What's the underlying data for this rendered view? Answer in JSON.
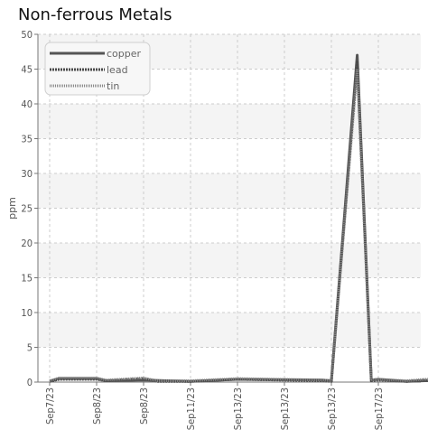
{
  "chart_data": {
    "type": "line",
    "title": "Non-ferrous Metals",
    "xlabel": "",
    "ylabel": "ppm",
    "ylim": [
      0,
      50
    ],
    "yticks": [
      0,
      5,
      10,
      15,
      20,
      25,
      30,
      35,
      40,
      45,
      50
    ],
    "categories": [
      "Sep7/23",
      "Sep8/23",
      "Sep8/23",
      "Sep11/23",
      "Sep13/23",
      "Sep13/23",
      "Sep13/23",
      "Sep17/23"
    ],
    "grid": true,
    "legend_position": "top-left",
    "series": [
      {
        "name": "copper",
        "color": "#555555",
        "style": "solid",
        "points": [
          [
            0,
            0.1
          ],
          [
            0.2,
            0.5
          ],
          [
            1.0,
            0.5
          ],
          [
            1.2,
            0.2
          ],
          [
            2.0,
            0.3
          ],
          [
            3.0,
            0.1
          ],
          [
            4.0,
            0.4
          ],
          [
            5.8,
            0.3
          ],
          [
            6.0,
            0.2
          ],
          [
            6.55,
            47.0
          ],
          [
            6.85,
            0.3
          ],
          [
            7.0,
            0.4
          ],
          [
            7.6,
            0.1
          ],
          [
            8.0,
            0.2
          ],
          [
            8.6,
            0.2
          ]
        ]
      },
      {
        "name": "lead",
        "color": "#4a4a4a",
        "style": "dense-dash",
        "points": [
          [
            0,
            0.1
          ],
          [
            0.2,
            0.4
          ],
          [
            1.0,
            0.4
          ],
          [
            1.2,
            0.2
          ],
          [
            2.0,
            0.5
          ],
          [
            2.3,
            0.1
          ],
          [
            3.0,
            0.1
          ],
          [
            4.0,
            0.4
          ],
          [
            5.8,
            0.2
          ],
          [
            6.0,
            0.1
          ],
          [
            6.55,
            46.0
          ],
          [
            6.85,
            0.2
          ],
          [
            7.0,
            0.3
          ],
          [
            7.6,
            0.1
          ],
          [
            8.0,
            0.3
          ],
          [
            8.6,
            0.3
          ]
        ]
      },
      {
        "name": "tin",
        "color": "#888888",
        "style": "dotted",
        "points": [
          [
            0,
            0.2
          ],
          [
            0.2,
            0.6
          ],
          [
            1.0,
            0.6
          ],
          [
            1.2,
            0.3
          ],
          [
            2.0,
            0.6
          ],
          [
            2.3,
            0.2
          ],
          [
            3.0,
            0.2
          ],
          [
            4.0,
            0.5
          ],
          [
            5.8,
            0.3
          ],
          [
            6.0,
            0.2
          ],
          [
            6.55,
            45.0
          ],
          [
            6.85,
            0.3
          ],
          [
            7.0,
            0.4
          ],
          [
            7.6,
            0.2
          ],
          [
            8.0,
            0.4
          ],
          [
            8.6,
            0.4
          ]
        ]
      }
    ]
  }
}
